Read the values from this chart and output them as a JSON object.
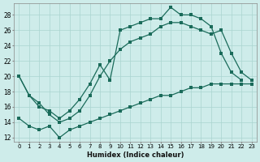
{
  "xlabel": "Humidex (Indice chaleur)",
  "xlim": [
    -0.5,
    23.5
  ],
  "ylim": [
    11.5,
    29.5
  ],
  "xticks": [
    0,
    1,
    2,
    3,
    4,
    5,
    6,
    7,
    8,
    9,
    10,
    11,
    12,
    13,
    14,
    15,
    16,
    17,
    18,
    19,
    20,
    21,
    22,
    23
  ],
  "yticks": [
    12,
    14,
    16,
    18,
    20,
    22,
    24,
    26,
    28
  ],
  "background_color": "#ceecea",
  "line_color": "#1a6b5a",
  "grid_color": "#aad4d0",
  "line1_x": [
    0,
    1,
    2,
    3,
    4,
    5,
    6,
    7,
    8,
    9,
    10,
    11,
    12,
    13,
    14,
    15,
    16,
    17,
    18,
    19,
    20,
    21,
    22
  ],
  "line1_y": [
    20.0,
    17.5,
    16.0,
    15.5,
    14.5,
    15.5,
    17.0,
    19.0,
    21.5,
    19.5,
    26.0,
    26.5,
    27.0,
    27.5,
    27.5,
    29.0,
    28.0,
    28.0,
    27.5,
    26.5,
    23.0,
    20.5,
    19.5
  ],
  "line2_x": [
    0,
    1,
    2,
    3,
    4,
    5,
    6,
    7,
    8,
    9,
    10,
    11,
    12,
    13,
    14,
    15,
    16,
    17,
    18,
    19,
    20,
    21,
    22,
    23
  ],
  "line2_y": [
    20.0,
    17.5,
    16.5,
    15.0,
    14.0,
    14.5,
    15.5,
    17.5,
    20.0,
    22.0,
    23.5,
    24.5,
    25.0,
    25.5,
    26.5,
    27.0,
    27.0,
    26.5,
    26.0,
    25.5,
    26.0,
    23.0,
    20.5,
    19.5
  ],
  "line3_x": [
    0,
    1,
    2,
    3,
    4,
    5,
    6,
    7,
    8,
    9,
    10,
    11,
    12,
    13,
    14,
    15,
    16,
    17,
    18,
    19,
    20,
    21,
    22,
    23
  ],
  "line3_y": [
    14.5,
    13.5,
    13.0,
    13.5,
    12.0,
    13.0,
    13.5,
    14.0,
    14.5,
    15.0,
    15.5,
    16.0,
    16.5,
    17.0,
    17.5,
    17.5,
    18.0,
    18.5,
    18.5,
    19.0,
    19.0,
    19.0,
    19.0,
    19.0
  ]
}
